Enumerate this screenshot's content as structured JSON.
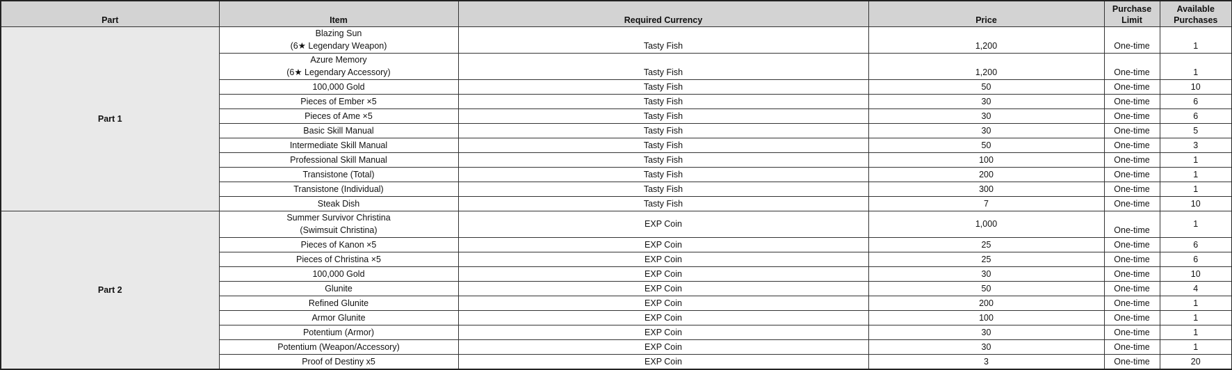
{
  "headers": [
    "Part",
    "Item",
    "Required Currency",
    "Price",
    "Purchase\nLimit",
    "Available\nPurchases"
  ],
  "header_lines": {
    "part": "Part",
    "item": "Item",
    "currency": "Required Currency",
    "price": "Price",
    "limit_1": "Purchase",
    "limit_2": "Limit",
    "avail_1": "Available",
    "avail_2": "Purchases"
  },
  "groups": [
    {
      "part": "Part 1",
      "rows": [
        {
          "item": [
            "Blazing Sun",
            "(6★ Legendary Weapon)"
          ],
          "currency": "Tasty Fish",
          "price": "1,200",
          "limit": "One-time",
          "available": "1"
        },
        {
          "item": [
            "Azure Memory",
            "(6★ Legendary Accessory)"
          ],
          "currency": "Tasty Fish",
          "price": "1,200",
          "limit": "One-time",
          "available": "1"
        },
        {
          "item": [
            "100,000 Gold"
          ],
          "currency": "Tasty Fish",
          "price": "50",
          "limit": "One-time",
          "available": "10"
        },
        {
          "item": [
            "Pieces of Ember ×5"
          ],
          "currency": "Tasty Fish",
          "price": "30",
          "limit": "One-time",
          "available": "6"
        },
        {
          "item": [
            "Pieces of Ame ×5"
          ],
          "currency": "Tasty Fish",
          "price": "30",
          "limit": "One-time",
          "available": "6"
        },
        {
          "item": [
            "Basic Skill Manual"
          ],
          "currency": "Tasty Fish",
          "price": "30",
          "limit": "One-time",
          "available": "5"
        },
        {
          "item": [
            "Intermediate Skill Manual"
          ],
          "currency": "Tasty Fish",
          "price": "50",
          "limit": "One-time",
          "available": "3"
        },
        {
          "item": [
            "Professional Skill Manual"
          ],
          "currency": "Tasty Fish",
          "price": "100",
          "limit": "One-time",
          "available": "1"
        },
        {
          "item": [
            "Transistone (Total)"
          ],
          "currency": "Tasty Fish",
          "price": "200",
          "limit": "One-time",
          "available": "1"
        },
        {
          "item": [
            "Transistone (Individual)"
          ],
          "currency": "Tasty Fish",
          "price": "300",
          "limit": "One-time",
          "available": "1"
        },
        {
          "item": [
            "Steak Dish"
          ],
          "currency": "Tasty Fish",
          "price": "7",
          "limit": "One-time",
          "available": "10"
        }
      ]
    },
    {
      "part": "Part 2",
      "rows": [
        {
          "item": [
            "Summer Survivor Christina",
            "(Swimsuit Christina)"
          ],
          "currency": "EXP Coin",
          "price": "1,000",
          "limit": "One-time",
          "available": "1",
          "middle": true
        },
        {
          "item": [
            "Pieces of Kanon ×5"
          ],
          "currency": "EXP Coin",
          "price": "25",
          "limit": "One-time",
          "available": "6"
        },
        {
          "item": [
            "Pieces of Christina ×5"
          ],
          "currency": "EXP Coin",
          "price": "25",
          "limit": "One-time",
          "available": "6"
        },
        {
          "item": [
            "100,000 Gold"
          ],
          "currency": "EXP Coin",
          "price": "30",
          "limit": "One-time",
          "available": "10"
        },
        {
          "item": [
            "Glunite"
          ],
          "currency": "EXP Coin",
          "price": "50",
          "limit": "One-time",
          "available": "4"
        },
        {
          "item": [
            "Refined Glunite"
          ],
          "currency": "EXP Coin",
          "price": "200",
          "limit": "One-time",
          "available": "1"
        },
        {
          "item": [
            "Armor Glunite"
          ],
          "currency": "EXP Coin",
          "price": "100",
          "limit": "One-time",
          "available": "1"
        },
        {
          "item": [
            "Potentium (Armor)"
          ],
          "currency": "EXP Coin",
          "price": "30",
          "limit": "One-time",
          "available": "1"
        },
        {
          "item": [
            "Potentium (Weapon/Accessory)"
          ],
          "currency": "EXP Coin",
          "price": "30",
          "limit": "One-time",
          "available": "1"
        },
        {
          "item": [
            "Proof of Destiny x5"
          ],
          "currency": "EXP Coin",
          "price": "3",
          "limit": "One-time",
          "available": "20"
        }
      ]
    }
  ]
}
